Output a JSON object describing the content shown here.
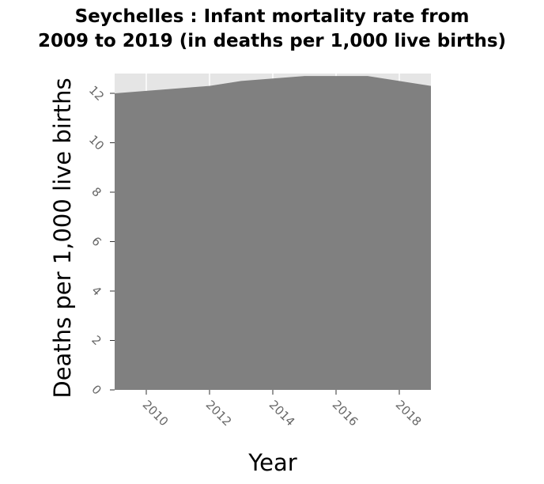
{
  "chart_data": {
    "type": "area",
    "title_line1": "Seychelles : Infant mortality rate from",
    "title_line2": "2009 to 2019 (in deaths per 1,000 live births)",
    "xlabel": "Year",
    "ylabel": "Deaths per 1,000 live births",
    "x": [
      2009,
      2010,
      2011,
      2012,
      2013,
      2014,
      2015,
      2016,
      2017,
      2018,
      2019
    ],
    "values": [
      12.0,
      12.1,
      12.2,
      12.3,
      12.5,
      12.6,
      12.7,
      12.7,
      12.7,
      12.5,
      12.3
    ],
    "xlim": [
      2009,
      2019
    ],
    "ylim": [
      0,
      12.8
    ],
    "x_ticks": [
      "2010",
      "2012",
      "2014",
      "2016",
      "2018"
    ],
    "y_ticks": [
      "0",
      "2",
      "4",
      "6",
      "8",
      "10",
      "12"
    ],
    "grid": true,
    "legend": false,
    "fill_color": "#808080",
    "panel_color": "#e5e5e5",
    "grid_color": "#ffffff",
    "tick_label_color": "#666666"
  }
}
